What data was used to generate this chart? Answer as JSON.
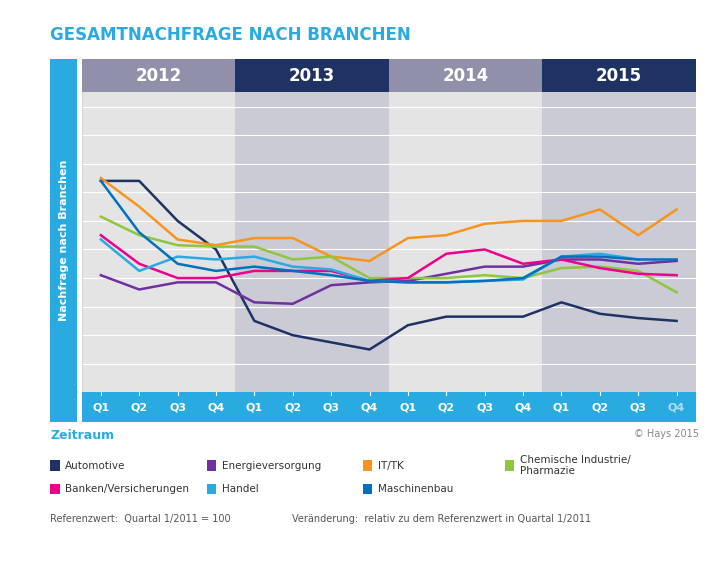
{
  "title": "GESAMTNACHFRAGE NACH BRANCHEN",
  "ylabel": "Nachfrage nach Branchen",
  "xlabel": "Zeitraum",
  "copyright": "© Hays 2015",
  "footnote1": "Referenzwert:  Quartal 1/2011 = 100",
  "footnote2": "Veränderung:  relativ zu dem Referenzwert in Quartal 1/2011",
  "years": [
    "2012",
    "2013",
    "2014",
    "2015"
  ],
  "x_labels": [
    "Q1",
    "Q2",
    "Q3",
    "Q4",
    "Q1",
    "Q2",
    "Q3",
    "Q4",
    "Q1",
    "Q2",
    "Q3",
    "Q4",
    "Q1",
    "Q2",
    "Q3",
    "Q4"
  ],
  "ylim": [
    0,
    210
  ],
  "yticks": [
    0,
    20,
    40,
    60,
    80,
    100,
    120,
    140,
    160,
    180,
    200
  ],
  "bg_color": "#ffffff",
  "plot_bg_light": "#e4e4e4",
  "plot_bg_dark": "#cbcbd6",
  "year_header_light": "#9090aa",
  "year_header_dark": "#1e3264",
  "xaxis_color": "#29abe2",
  "left_bar_color": "#29abe2",
  "ylabel_color": "#ffffff",
  "xlabel_color": "#29abe2",
  "title_color": "#29abe2",
  "series": [
    {
      "name": "Automotive",
      "color": "#1e3264",
      "values": [
        148,
        148,
        120,
        100,
        50,
        40,
        35,
        30,
        47,
        53,
        53,
        53,
        63,
        55,
        52,
        50
      ]
    },
    {
      "name": "Energieversorgung",
      "color": "#7030a0",
      "values": [
        82,
        72,
        77,
        77,
        63,
        62,
        75,
        77,
        78,
        83,
        88,
        88,
        93,
        93,
        90,
        92
      ]
    },
    {
      "name": "IT/TK",
      "color": "#f7941d",
      "values": [
        150,
        130,
        107,
        103,
        108,
        108,
        95,
        92,
        108,
        110,
        118,
        120,
        120,
        128,
        110,
        128
      ]
    },
    {
      "name": "Chemische Industrie/\nPharmazie",
      "color": "#8dc63f",
      "values": [
        123,
        110,
        103,
        102,
        102,
        93,
        95,
        80,
        80,
        80,
        82,
        80,
        87,
        88,
        85,
        70
      ]
    },
    {
      "name": "Banken/Versicherungen",
      "color": "#ec008c",
      "values": [
        110,
        90,
        80,
        80,
        85,
        85,
        85,
        78,
        80,
        97,
        100,
        90,
        93,
        87,
        83,
        82
      ]
    },
    {
      "name": "Handel",
      "color": "#29abe2",
      "values": [
        107,
        85,
        95,
        93,
        95,
        88,
        86,
        78,
        77,
        77,
        78,
        79,
        95,
        97,
        93,
        null
      ]
    },
    {
      "name": "Maschinenbau",
      "color": "#0071bc",
      "values": [
        148,
        112,
        90,
        85,
        88,
        85,
        82,
        78,
        77,
        77,
        78,
        80,
        95,
        95,
        93,
        93
      ]
    }
  ],
  "legend": [
    {
      "name": "Automotive",
      "color": "#1e3264"
    },
    {
      "name": "Energieversorgung",
      "color": "#7030a0"
    },
    {
      "name": "IT/TK",
      "color": "#f7941d"
    },
    {
      "name": "Chemische Industrie/\nPharmazie",
      "color": "#8dc63f"
    },
    {
      "name": "Banken/Versicherungen",
      "color": "#ec008c"
    },
    {
      "name": "Handel",
      "color": "#29abe2"
    },
    {
      "name": "Maschinenbau",
      "color": "#0071bc"
    }
  ]
}
